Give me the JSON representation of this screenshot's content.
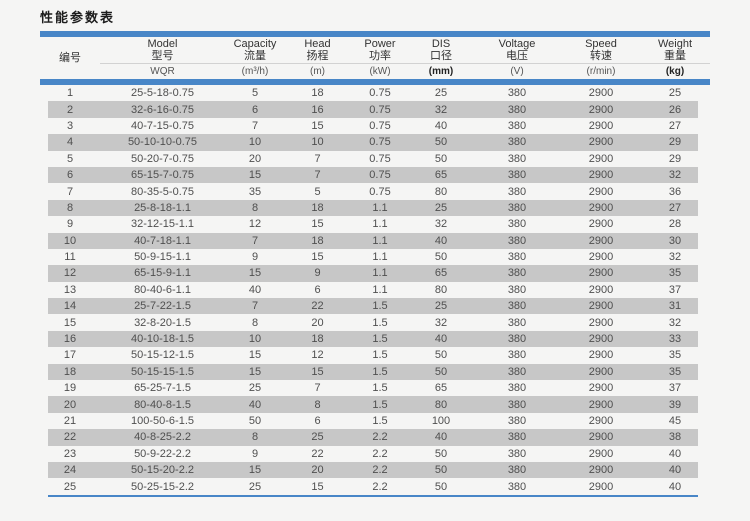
{
  "page": {
    "title": "性能参数表"
  },
  "colors": {
    "accent_blue": "#4886c7",
    "stripe_gray": "#c7c7c7",
    "page_bg": "#f5f5f4"
  },
  "table": {
    "columns": [
      {
        "key": "no",
        "en": "",
        "zh": "编号",
        "unit": ""
      },
      {
        "key": "model",
        "en": "Model",
        "zh": "型号",
        "unit": "WQR"
      },
      {
        "key": "capacity",
        "en": "Capacity",
        "zh": "流量",
        "unit": "(m³/h)"
      },
      {
        "key": "head",
        "en": "Head",
        "zh": "扬程",
        "unit": "(m)"
      },
      {
        "key": "power",
        "en": "Power",
        "zh": "功率",
        "unit": "(kW)"
      },
      {
        "key": "dis",
        "en": "DIS",
        "zh": "口径",
        "unit": "(mm)"
      },
      {
        "key": "voltage",
        "en": "Voltage",
        "zh": "电压",
        "unit": "(V)"
      },
      {
        "key": "speed",
        "en": "Speed",
        "zh": "转速",
        "unit": "(r/min)"
      },
      {
        "key": "weight",
        "en": "Weight",
        "zh": "重量",
        "unit": "(kg)"
      }
    ],
    "rows": [
      [
        1,
        "25-5-18-0.75",
        5,
        18,
        0.75,
        25,
        380,
        2900,
        25
      ],
      [
        2,
        "32-6-16-0.75",
        6,
        16,
        0.75,
        32,
        380,
        2900,
        26
      ],
      [
        3,
        "40-7-15-0.75",
        7,
        15,
        0.75,
        40,
        380,
        2900,
        27
      ],
      [
        4,
        "50-10-10-0.75",
        10,
        10,
        0.75,
        50,
        380,
        2900,
        29
      ],
      [
        5,
        "50-20-7-0.75",
        20,
        7,
        0.75,
        50,
        380,
        2900,
        29
      ],
      [
        6,
        "65-15-7-0.75",
        15,
        7,
        0.75,
        65,
        380,
        2900,
        32
      ],
      [
        7,
        "80-35-5-0.75",
        35,
        5,
        0.75,
        80,
        380,
        2900,
        36
      ],
      [
        8,
        "25-8-18-1.1",
        8,
        18,
        1.1,
        25,
        380,
        2900,
        27
      ],
      [
        9,
        "32-12-15-1.1",
        12,
        15,
        1.1,
        32,
        380,
        2900,
        28
      ],
      [
        10,
        "40-7-18-1.1",
        7,
        18,
        1.1,
        40,
        380,
        2900,
        30
      ],
      [
        11,
        "50-9-15-1.1",
        9,
        15,
        1.1,
        50,
        380,
        2900,
        32
      ],
      [
        12,
        "65-15-9-1.1",
        15,
        9,
        1.1,
        65,
        380,
        2900,
        35
      ],
      [
        13,
        "80-40-6-1.1",
        40,
        6,
        1.1,
        80,
        380,
        2900,
        37
      ],
      [
        14,
        "25-7-22-1.5",
        7,
        22,
        1.5,
        25,
        380,
        2900,
        31
      ],
      [
        15,
        "32-8-20-1.5",
        8,
        20,
        1.5,
        32,
        380,
        2900,
        32
      ],
      [
        16,
        "40-10-18-1.5",
        10,
        18,
        1.5,
        40,
        380,
        2900,
        33
      ],
      [
        17,
        "50-15-12-1.5",
        15,
        12,
        1.5,
        50,
        380,
        2900,
        35
      ],
      [
        18,
        "50-15-15-1.5",
        15,
        15,
        1.5,
        50,
        380,
        2900,
        35
      ],
      [
        19,
        "65-25-7-1.5",
        25,
        7,
        1.5,
        65,
        380,
        2900,
        37
      ],
      [
        20,
        "80-40-8-1.5",
        40,
        8,
        1.5,
        80,
        380,
        2900,
        39
      ],
      [
        21,
        "100-50-6-1.5",
        50,
        6,
        1.5,
        100,
        380,
        2900,
        45
      ],
      [
        22,
        "40-8-25-2.2",
        8,
        25,
        2.2,
        40,
        380,
        2900,
        38
      ],
      [
        23,
        "50-9-22-2.2",
        9,
        22,
        2.2,
        50,
        380,
        2900,
        40
      ],
      [
        24,
        "50-15-20-2.2",
        15,
        20,
        2.2,
        50,
        380,
        2900,
        40
      ],
      [
        25,
        "50-25-15-2.2",
        25,
        15,
        2.2,
        50,
        380,
        2900,
        40
      ]
    ]
  }
}
